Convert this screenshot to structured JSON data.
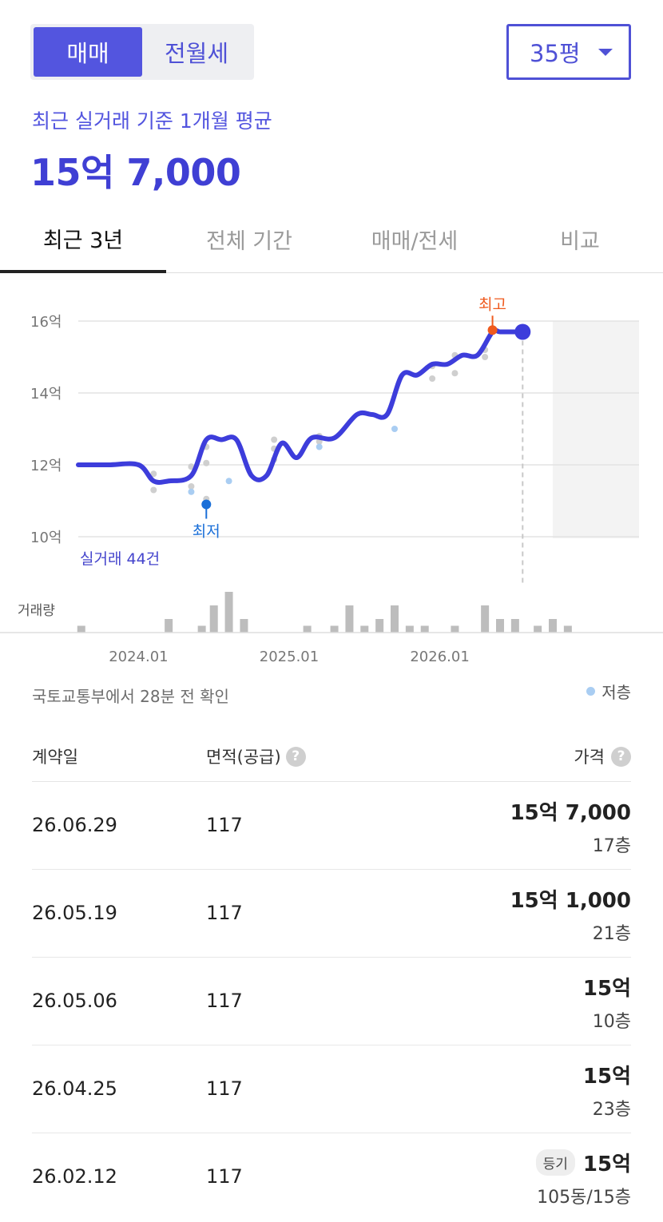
{
  "segment": {
    "options": [
      "매매",
      "전월세"
    ],
    "selected": "매매"
  },
  "size_select": {
    "value": "35평"
  },
  "summary": {
    "label": "최근 실거래 기준 1개월 평균",
    "price": "15억 7,000"
  },
  "tabs": [
    "최근 3년",
    "전체 기간",
    "매매/전세",
    "비교"
  ],
  "chart_data": {
    "type": "line",
    "y_ticks": [
      "16억",
      "14억",
      "12억",
      "10억"
    ],
    "y_values": [
      16,
      14,
      12,
      10
    ],
    "ylim": [
      10,
      16
    ],
    "x_ticks": [
      "2024.01",
      "2025.01",
      "2026.01"
    ],
    "x_tick_values": [
      2024.0,
      2025.0,
      2026.0
    ],
    "xlim": [
      2023.6,
      2026.75
    ],
    "trend_x": [
      2023.6,
      2023.8,
      2024.0,
      2024.1,
      2024.2,
      2024.35,
      2024.45,
      2024.55,
      2024.65,
      2024.75,
      2024.85,
      2024.95,
      2025.05,
      2025.15,
      2025.3,
      2025.45,
      2025.55,
      2025.65,
      2025.75,
      2025.85,
      2025.95,
      2026.05,
      2026.15,
      2026.25,
      2026.35,
      2026.4,
      2026.5
    ],
    "trend_y": [
      12.0,
      12.0,
      12.0,
      11.55,
      11.55,
      11.7,
      12.7,
      12.7,
      12.7,
      11.7,
      11.7,
      12.6,
      12.2,
      12.75,
      12.75,
      13.4,
      13.4,
      13.4,
      14.5,
      14.5,
      14.8,
      14.8,
      15.05,
      15.05,
      15.7,
      15.7,
      15.7
    ],
    "trade_points": [
      {
        "x": 2024.1,
        "y": 11.75
      },
      {
        "x": 2024.1,
        "y": 11.3
      },
      {
        "x": 2024.35,
        "y": 11.95
      },
      {
        "x": 2024.35,
        "y": 11.4
      },
      {
        "x": 2024.45,
        "y": 12.5
      },
      {
        "x": 2024.45,
        "y": 12.05
      },
      {
        "x": 2024.45,
        "y": 11.05
      },
      {
        "x": 2024.9,
        "y": 12.7
      },
      {
        "x": 2024.9,
        "y": 12.45
      },
      {
        "x": 2024.9,
        "y": 12.15
      },
      {
        "x": 2025.2,
        "y": 12.8
      },
      {
        "x": 2025.2,
        "y": 12.65
      },
      {
        "x": 2025.95,
        "y": 14.75
      },
      {
        "x": 2025.95,
        "y": 14.4
      },
      {
        "x": 2026.1,
        "y": 14.55
      },
      {
        "x": 2026.1,
        "y": 15.05
      },
      {
        "x": 2026.3,
        "y": 15.2
      },
      {
        "x": 2026.3,
        "y": 15.0
      }
    ],
    "low_floor_points": [
      {
        "x": 2024.35,
        "y": 11.25
      },
      {
        "x": 2024.6,
        "y": 11.55
      },
      {
        "x": 2025.2,
        "y": 12.5
      },
      {
        "x": 2025.7,
        "y": 13.0
      }
    ],
    "max": {
      "label": "최고",
      "x": 2026.35,
      "y": 15.75
    },
    "min": {
      "label": "최저",
      "x": 2024.45,
      "y": 10.9
    },
    "current": {
      "x": 2026.55,
      "y": 15.7
    },
    "deal_count_label": "실거래 44건",
    "volume_label": "거래량",
    "volume": [
      {
        "x": 2023.62,
        "v": 1
      },
      {
        "x": 2024.2,
        "v": 2
      },
      {
        "x": 2024.42,
        "v": 1
      },
      {
        "x": 2024.5,
        "v": 4
      },
      {
        "x": 2024.6,
        "v": 6
      },
      {
        "x": 2024.7,
        "v": 2
      },
      {
        "x": 2025.12,
        "v": 1
      },
      {
        "x": 2025.3,
        "v": 1
      },
      {
        "x": 2025.4,
        "v": 4
      },
      {
        "x": 2025.5,
        "v": 1
      },
      {
        "x": 2025.6,
        "v": 2
      },
      {
        "x": 2025.7,
        "v": 4
      },
      {
        "x": 2025.8,
        "v": 1
      },
      {
        "x": 2025.9,
        "v": 1
      },
      {
        "x": 2026.1,
        "v": 1
      },
      {
        "x": 2026.3,
        "v": 4
      },
      {
        "x": 2026.4,
        "v": 2
      },
      {
        "x": 2026.5,
        "v": 2
      },
      {
        "x": 2026.65,
        "v": 1
      },
      {
        "x": 2026.75,
        "v": 2
      },
      {
        "x": 2026.85,
        "v": 1
      }
    ]
  },
  "status": {
    "updated": "국토교통부에서 28분 전 확인",
    "legend_low": "저층"
  },
  "table": {
    "headers": {
      "date": "계약일",
      "area": "면적(공급)",
      "price": "가격"
    },
    "rows": [
      {
        "date": "26.06.29",
        "area": "117",
        "price": "15억 7,000",
        "floor": "17층",
        "badge": ""
      },
      {
        "date": "26.05.19",
        "area": "117",
        "price": "15억 1,000",
        "floor": "21층",
        "badge": ""
      },
      {
        "date": "26.05.06",
        "area": "117",
        "price": "15억",
        "floor": "10층",
        "badge": ""
      },
      {
        "date": "26.04.25",
        "area": "117",
        "price": "15억",
        "floor": "23층",
        "badge": ""
      },
      {
        "date": "26.02.12",
        "area": "117",
        "price": "15억",
        "floor": "105동/15층",
        "badge": "등기"
      }
    ]
  }
}
